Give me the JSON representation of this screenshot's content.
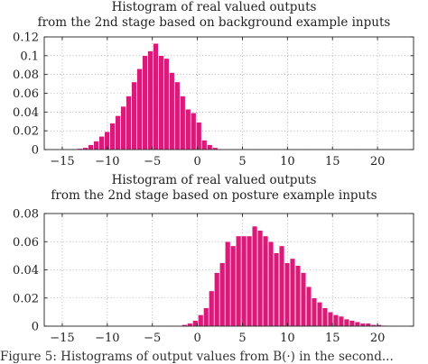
{
  "chart_data": [
    {
      "type": "bar",
      "title_lines": [
        "Histogram of real valued outputs",
        "from the 2nd stage based on background example inputs"
      ],
      "xlim": [
        -17,
        24
      ],
      "ylim": [
        0,
        0.12
      ],
      "xticks": [
        -15,
        -10,
        -5,
        0,
        5,
        10,
        15,
        20
      ],
      "yticks": [
        0,
        0.02,
        0.04,
        0.06,
        0.08,
        0.1,
        0.12
      ],
      "ytick_labels": [
        "0",
        "0.02",
        "0.04",
        "0.06",
        "0.08",
        "0.1",
        "0.12"
      ],
      "bin_width": 0.62,
      "x": [
        -13.6,
        -13.0,
        -12.4,
        -11.8,
        -11.2,
        -10.6,
        -10.0,
        -9.4,
        -8.8,
        -8.2,
        -7.6,
        -7.0,
        -6.4,
        -5.8,
        -5.2,
        -4.6,
        -4.0,
        -3.4,
        -2.8,
        -2.2,
        -1.6,
        -1.0,
        -0.4,
        0.2,
        0.8,
        1.4,
        2.0,
        2.6
      ],
      "values": [
        0.0005,
        0.001,
        0.002,
        0.005,
        0.009,
        0.014,
        0.019,
        0.028,
        0.036,
        0.046,
        0.057,
        0.072,
        0.086,
        0.1,
        0.105,
        0.113,
        0.1,
        0.097,
        0.082,
        0.072,
        0.057,
        0.043,
        0.039,
        0.029,
        0.01,
        0.005,
        0.002,
        0.0005
      ],
      "grid": true,
      "color": "#d81b78"
    },
    {
      "type": "bar",
      "title_lines": [
        "Histogram of real valued outputs",
        "from the 2nd stage based on posture example inputs"
      ],
      "xlim": [
        -17,
        24
      ],
      "ylim": [
        0,
        0.08
      ],
      "xticks": [
        -15,
        -10,
        -5,
        0,
        5,
        10,
        15,
        20
      ],
      "yticks": [
        0,
        0.02,
        0.04,
        0.06,
        0.08
      ],
      "ytick_labels": [
        "0",
        "0.02",
        "0.04",
        "0.06",
        "0.08"
      ],
      "bin_width": 0.62,
      "x": [
        -1.4,
        -0.8,
        -0.2,
        0.4,
        1.0,
        1.6,
        2.2,
        2.8,
        3.4,
        4.0,
        4.6,
        5.2,
        5.8,
        6.4,
        7.0,
        7.6,
        8.2,
        8.8,
        9.4,
        10.0,
        10.6,
        11.2,
        11.8,
        12.4,
        13.0,
        13.6,
        14.2,
        14.8,
        15.4,
        16.0,
        16.6,
        17.2,
        17.8,
        18.4,
        19.0,
        19.6,
        20.2,
        20.8
      ],
      "values": [
        0.001,
        0.002,
        0.004,
        0.008,
        0.013,
        0.025,
        0.038,
        0.045,
        0.06,
        0.057,
        0.064,
        0.064,
        0.064,
        0.071,
        0.068,
        0.064,
        0.06,
        0.052,
        0.057,
        0.045,
        0.048,
        0.043,
        0.038,
        0.028,
        0.02,
        0.017,
        0.013,
        0.01,
        0.008,
        0.007,
        0.005,
        0.004,
        0.003,
        0.002,
        0.002,
        0.001,
        0.001,
        0.0005
      ],
      "grid": true,
      "color": "#d81b78"
    }
  ],
  "caption": "Figure 5: Histograms of output values from B(·) in the second..."
}
